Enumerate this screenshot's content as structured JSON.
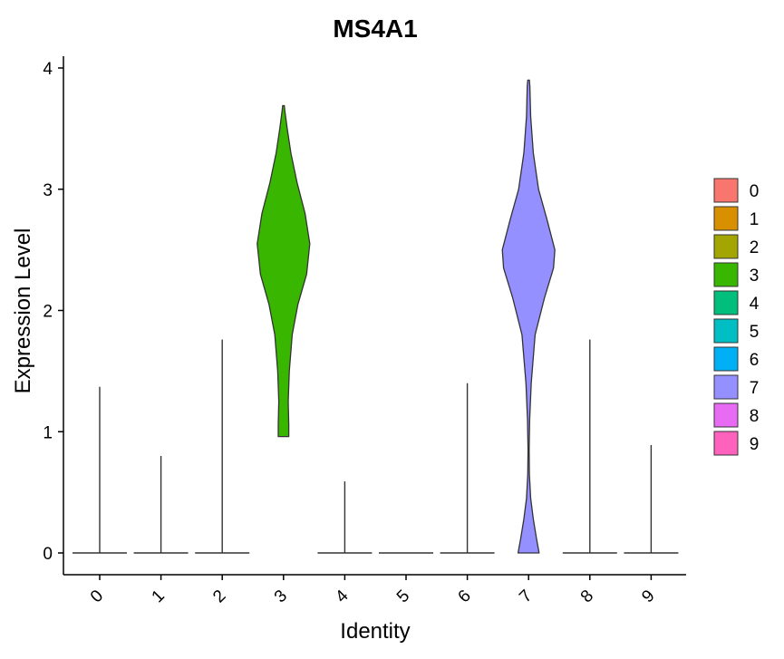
{
  "chart_data": {
    "type": "violin",
    "title": "MS4A1",
    "xlabel": "Identity",
    "ylabel": "Expression Level",
    "ylim": [
      0,
      4
    ],
    "y_ticks": [
      "0",
      "1",
      "2",
      "3",
      "4"
    ],
    "categories": [
      "0",
      "1",
      "2",
      "3",
      "4",
      "5",
      "6",
      "7",
      "8",
      "9"
    ],
    "legend_position": "right",
    "grid": false,
    "series": [
      {
        "name": "0",
        "color": "#F8766D",
        "max": 1.37,
        "profile": "zero"
      },
      {
        "name": "1",
        "color": "#D89000",
        "max": 0.8,
        "profile": "zero"
      },
      {
        "name": "2",
        "color": "#A3A500",
        "max": 1.76,
        "profile": "zero"
      },
      {
        "name": "3",
        "color": "#39B600",
        "min": 0.96,
        "max": 3.69,
        "profile": "bulk"
      },
      {
        "name": "4",
        "color": "#00BF7D",
        "max": 0.59,
        "profile": "zero"
      },
      {
        "name": "5",
        "color": "#00BFC4",
        "max": 0.0,
        "profile": "zero"
      },
      {
        "name": "6",
        "color": "#00B0F6",
        "max": 1.4,
        "profile": "zero"
      },
      {
        "name": "7",
        "color": "#9590FF",
        "min": 0.0,
        "max": 3.9,
        "profile": "bimodal"
      },
      {
        "name": "8",
        "color": "#E76BF3",
        "max": 1.76,
        "profile": "zero"
      },
      {
        "name": "9",
        "color": "#FF62BC",
        "max": 0.89,
        "profile": "zero"
      }
    ]
  }
}
